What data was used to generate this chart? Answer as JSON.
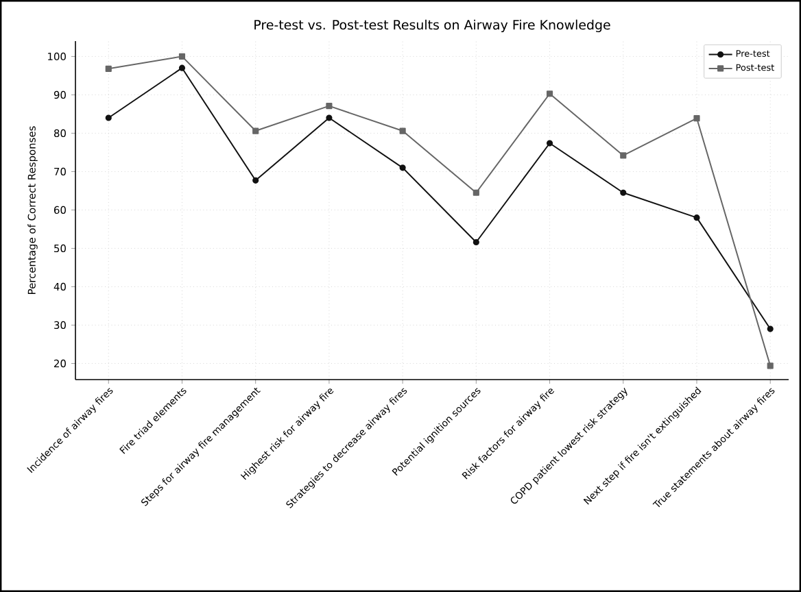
{
  "chart_data": {
    "type": "line",
    "title": "Pre-test vs. Post-test Results on Airway Fire Knowledge",
    "ylabel": "Percentage of Correct Responses",
    "categories": [
      "Incidence of airway fires",
      "Fire triad elements",
      "Steps for airway fire management",
      "Highest risk for airway fire",
      "Strategies to decrease airway fires",
      "Potential ignition sources",
      "Risk factors for airway fire",
      "COPD patient lowest risk strategy",
      "Next step if fire isn't extinguished",
      "True statements about airway fires"
    ],
    "series": [
      {
        "name": "Pre-test",
        "color": "#111111",
        "marker": "circle",
        "values": [
          84,
          97,
          67.7,
          84,
          71,
          51.6,
          77.4,
          64.5,
          58,
          29
        ]
      },
      {
        "name": "Post-test",
        "color": "#666666",
        "marker": "square",
        "values": [
          96.8,
          100,
          80.6,
          87.1,
          80.6,
          64.5,
          90.3,
          74.2,
          83.9,
          19.4
        ]
      }
    ],
    "ylim": [
      15.8,
      104
    ],
    "yticks": [
      20,
      30,
      40,
      50,
      60,
      70,
      80,
      90,
      100
    ],
    "grid": true,
    "legend": "top right",
    "line_style": "solid"
  }
}
